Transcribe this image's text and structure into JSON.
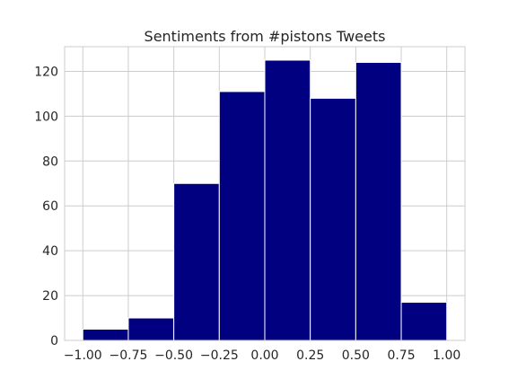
{
  "chart_data": {
    "type": "histogram",
    "title": "Sentiments from #pistons Tweets",
    "xlabel": "",
    "ylabel": "",
    "bin_edges": [
      -1.0,
      -0.75,
      -0.5,
      -0.25,
      0.0,
      0.25,
      0.5,
      0.75,
      1.0
    ],
    "counts": [
      5,
      10,
      70,
      111,
      125,
      108,
      124,
      17
    ],
    "xlim": [
      -1.1,
      1.1
    ],
    "ylim": [
      0,
      131
    ],
    "x_ticks": [
      -1.0,
      -0.75,
      -0.5,
      -0.25,
      0.0,
      0.25,
      0.5,
      0.75,
      1.0
    ],
    "x_tick_labels": [
      "−1.00",
      "−0.75",
      "−0.50",
      "−0.25",
      "0.00",
      "0.25",
      "0.50",
      "0.75",
      "1.00"
    ],
    "y_ticks": [
      0,
      20,
      40,
      60,
      80,
      100,
      120
    ],
    "y_tick_labels": [
      "0",
      "20",
      "40",
      "60",
      "80",
      "100",
      "120"
    ],
    "grid": true,
    "bar_color": "#000080",
    "grid_color": "#cccccc",
    "legend": false
  }
}
